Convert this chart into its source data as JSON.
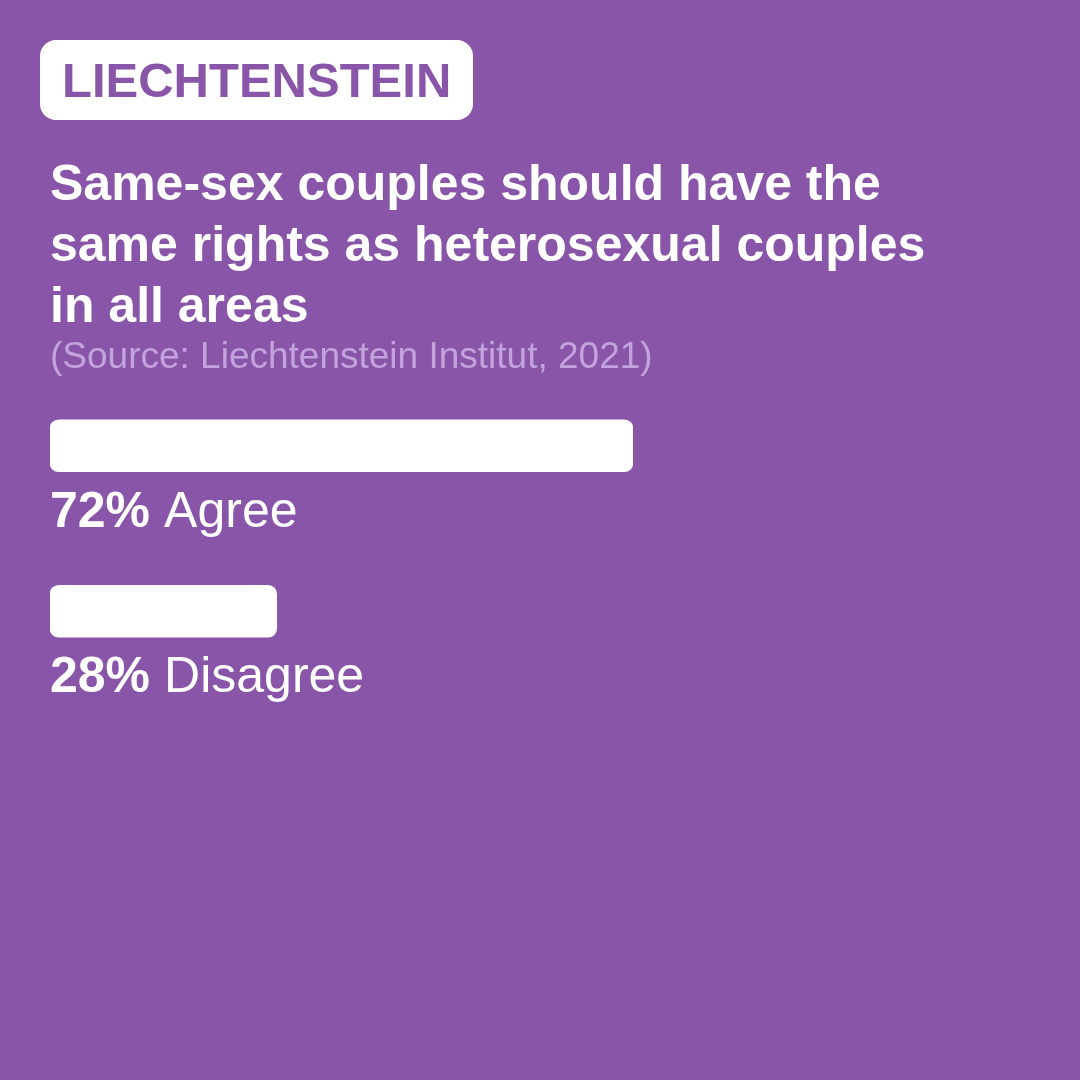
{
  "chart_data": {
    "type": "bar",
    "orientation": "horizontal",
    "title": "LIECHTENSTEIN",
    "subtitle": "Same-sex couples should have the same rights as heterosexual couples in all areas",
    "annotations": [
      "(Source: Liechtenstein Institut, 2021)"
    ],
    "categories": [
      "Agree",
      "Disagree"
    ],
    "values": [
      72,
      28
    ],
    "value_labels": [
      "72%",
      "28%"
    ],
    "color": "#ffffff",
    "tick_labels": "y"
  }
}
